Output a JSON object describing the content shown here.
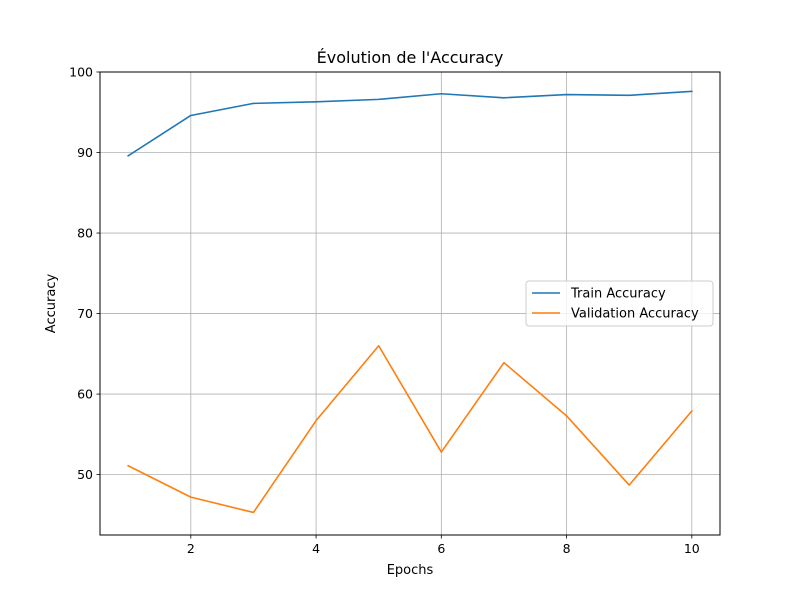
{
  "chart_data": {
    "type": "line",
    "title": "Évolution de l'Accuracy",
    "xlabel": "Epochs",
    "ylabel": "Accuracy",
    "xlim": [
      0.55,
      10.45
    ],
    "ylim": [
      42.5,
      100
    ],
    "xticks": [
      2,
      4,
      6,
      8,
      10
    ],
    "yticks": [
      50,
      60,
      70,
      80,
      90,
      100
    ],
    "grid": true,
    "legend_position": "center-right",
    "x": [
      1,
      2,
      3,
      4,
      5,
      6,
      7,
      8,
      9,
      10
    ],
    "series": [
      {
        "name": "Train Accuracy",
        "color": "#1f77b4",
        "values": [
          89.6,
          94.6,
          96.1,
          96.3,
          96.6,
          97.3,
          96.8,
          97.2,
          97.1,
          97.6
        ]
      },
      {
        "name": "Validation Accuracy",
        "color": "#ff7f0e",
        "values": [
          51.1,
          47.2,
          45.3,
          56.7,
          66.0,
          52.8,
          63.9,
          57.3,
          48.7,
          57.9
        ]
      }
    ]
  }
}
